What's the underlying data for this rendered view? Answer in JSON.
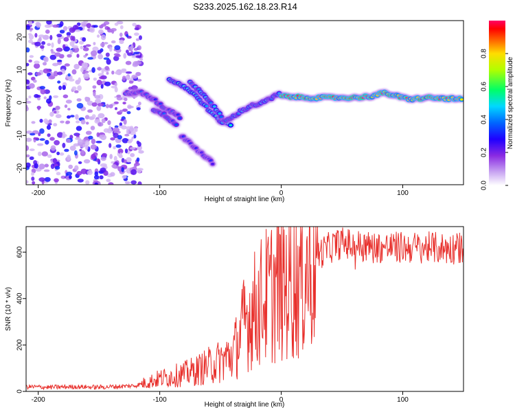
{
  "figure": {
    "title": "S233.2025.162.18.23.R14"
  },
  "chart_data": [
    {
      "type": "heatmap",
      "xlabel": "Height of straight line (km)",
      "ylabel": "Frequency (Hz)",
      "xlim": [
        -210,
        150
      ],
      "ylim": [
        -25,
        25
      ],
      "x_ticks": [
        -200,
        -100,
        0,
        100
      ],
      "y_ticks": [
        -20,
        -10,
        0,
        10,
        20
      ],
      "colorbar": {
        "label": "Normalized spectral amplitude",
        "range": [
          0,
          1
        ],
        "ticks": [
          0.0,
          0.2,
          0.4,
          0.6,
          0.8
        ],
        "colormap": [
          "#ffffff",
          "#c9a6f2",
          "#8a2be2",
          "#3a00ff",
          "#0044ff",
          "#00ccff",
          "#00ff66",
          "#ffff00",
          "#ff8800",
          "#ff0000",
          "#ff0066"
        ]
      },
      "ridges": [
        {
          "x": [
            -128,
            -115,
            -105,
            -95,
            -88,
            -82
          ],
          "y": [
            3,
            3,
            1,
            -2,
            -3,
            -5
          ],
          "amp": 0.35
        },
        {
          "x": [
            -105,
            -95,
            -85
          ],
          "y": [
            -2,
            -4,
            -7
          ],
          "amp": 0.4
        },
        {
          "x": [
            -92,
            -80,
            -70,
            -60,
            -52,
            -45,
            -40
          ],
          "y": [
            7,
            5,
            2,
            -2,
            -5,
            -6,
            -7
          ],
          "amp": 0.5
        },
        {
          "x": [
            -75,
            -65,
            -58,
            -52,
            -48
          ],
          "y": [
            6,
            3,
            0,
            -3,
            -5
          ],
          "amp": 0.45
        },
        {
          "x": [
            -82,
            -70,
            -55
          ],
          "y": [
            -10,
            -14,
            -19
          ],
          "amp": 0.3
        },
        {
          "x": [
            -50,
            -42,
            -35,
            -25,
            -15,
            -5,
            0
          ],
          "y": [
            -6,
            -5,
            -3,
            -1,
            0,
            2,
            3
          ],
          "amp": 0.45
        },
        {
          "x": [
            0,
            20,
            40,
            60,
            75,
            85,
            95,
            105,
            120,
            150
          ],
          "y": [
            2,
            1.5,
            1.5,
            1.5,
            2,
            3,
            2,
            1,
            1.5,
            1
          ],
          "amp": 0.95
        }
      ]
    },
    {
      "type": "line",
      "xlabel": "Height of straight line (km)",
      "ylabel": "SNR (10 * v/v)",
      "xlim": [
        -210,
        150
      ],
      "ylim": [
        0,
        710
      ],
      "x_ticks": [
        -200,
        -100,
        0,
        100
      ],
      "y_ticks": [
        0,
        200,
        400,
        600
      ],
      "color": "#e8302c",
      "series": [
        {
          "x": [
            -210,
            -190,
            -170,
            -150,
            -130,
            -120,
            -110,
            -100,
            -90,
            -80,
            -70,
            -60,
            -50,
            -40,
            -35,
            -30,
            -25,
            -20,
            -15,
            -10,
            -5,
            0,
            5,
            10,
            15,
            20,
            25,
            30,
            40,
            50,
            60,
            80,
            100,
            120,
            140,
            150
          ],
          "values": [
            20,
            18,
            20,
            18,
            22,
            25,
            40,
            55,
            65,
            75,
            90,
            110,
            130,
            160,
            220,
            300,
            340,
            360,
            400,
            420,
            450,
            460,
            470,
            480,
            490,
            520,
            560,
            590,
            620,
            640,
            630,
            620,
            620,
            620,
            615,
            620
          ]
        }
      ]
    }
  ]
}
